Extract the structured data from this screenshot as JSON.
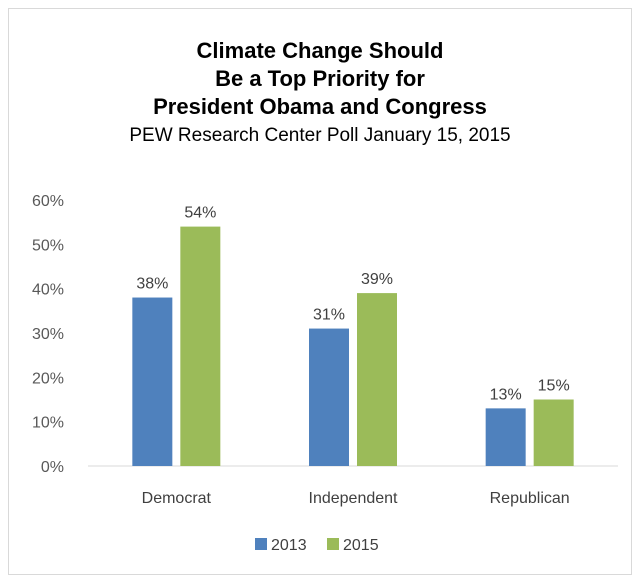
{
  "chart_data": {
    "type": "bar",
    "title_lines": [
      "Climate Change Should",
      "Be a Top Priority for",
      "President Obama and Congress"
    ],
    "subtitle": "PEW Research Center Poll January 15, 2015",
    "categories": [
      "Democrat",
      "Independent",
      "Republican"
    ],
    "series": [
      {
        "name": "2013",
        "values": [
          38,
          31,
          13
        ],
        "color": "#4f81bd"
      },
      {
        "name": "2015",
        "values": [
          54,
          39,
          15
        ],
        "color": "#9bbb59"
      }
    ],
    "ylim": [
      0,
      60
    ],
    "yticks": [
      0,
      10,
      20,
      30,
      40,
      50,
      60
    ],
    "value_format": "percent",
    "grid": false,
    "legend_position": "bottom"
  }
}
